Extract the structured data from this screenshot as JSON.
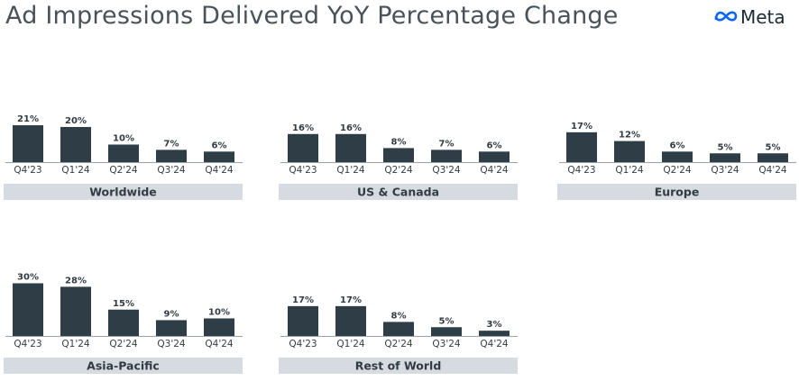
{
  "header": {
    "title": "Ad Impressions Delivered YoY Percentage Change",
    "logo_text": "Meta",
    "logo_icon": "meta-infinity-icon",
    "logo_color": "#0866ff"
  },
  "colors": {
    "bar": "#2f3e46",
    "label_band": "#d5dbe1",
    "axis": "#9aa2a8",
    "text": "#333b42"
  },
  "chart_data": [
    {
      "type": "bar",
      "title": "Worldwide",
      "categories": [
        "Q4'23",
        "Q1'24",
        "Q2'24",
        "Q3'24",
        "Q4'24"
      ],
      "values": [
        21,
        20,
        10,
        7,
        6
      ],
      "value_labels": [
        "21%",
        "20%",
        "10%",
        "7%",
        "6%"
      ],
      "ylim": [
        0,
        30
      ]
    },
    {
      "type": "bar",
      "title": "US & Canada",
      "categories": [
        "Q4'23",
        "Q1'24",
        "Q2'24",
        "Q3'24",
        "Q4'24"
      ],
      "values": [
        16,
        16,
        8,
        7,
        6
      ],
      "value_labels": [
        "16%",
        "16%",
        "8%",
        "7%",
        "6%"
      ],
      "ylim": [
        0,
        30
      ]
    },
    {
      "type": "bar",
      "title": "Europe",
      "categories": [
        "Q4'23",
        "Q1'24",
        "Q2'24",
        "Q3'24",
        "Q4'24"
      ],
      "values": [
        17,
        12,
        6,
        5,
        5
      ],
      "value_labels": [
        "17%",
        "12%",
        "6%",
        "5%",
        "5%"
      ],
      "ylim": [
        0,
        30
      ]
    },
    {
      "type": "bar",
      "title": "Asia-Pacific",
      "categories": [
        "Q4'23",
        "Q1'24",
        "Q2'24",
        "Q3'24",
        "Q4'24"
      ],
      "values": [
        30,
        28,
        15,
        9,
        10
      ],
      "value_labels": [
        "30%",
        "28%",
        "15%",
        "9%",
        "10%"
      ],
      "ylim": [
        0,
        30
      ]
    },
    {
      "type": "bar",
      "title": "Rest of World",
      "categories": [
        "Q4'23",
        "Q1'24",
        "Q2'24",
        "Q3'24",
        "Q4'24"
      ],
      "values": [
        17,
        17,
        8,
        5,
        3
      ],
      "value_labels": [
        "17%",
        "17%",
        "8%",
        "5%",
        "3%"
      ],
      "ylim": [
        0,
        30
      ]
    }
  ]
}
